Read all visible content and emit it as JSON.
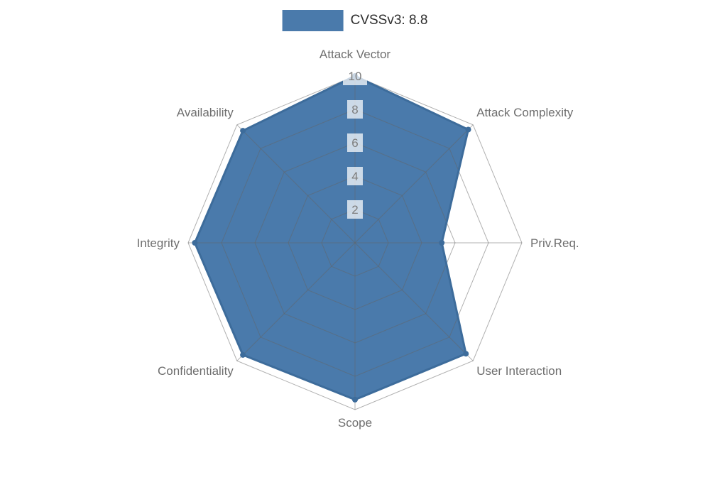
{
  "page": {
    "background": "#ffffff"
  },
  "legend": {
    "label": "CVSSv3: 8.8",
    "swatch_color": "#4a7aab"
  },
  "chart_data": {
    "type": "radar",
    "title": "CVSSv3: 8.8",
    "categories": [
      "Attack Vector",
      "Attack Complexity",
      "Priv.Req.",
      "User Interaction",
      "Scope",
      "Confidentiality",
      "Integrity",
      "Availability"
    ],
    "series": [
      {
        "name": "CVSSv3: 8.8",
        "values": [
          10,
          9.6,
          5.2,
          9.4,
          9.4,
          9.5,
          9.6,
          9.5
        ]
      }
    ],
    "rlim": [
      0,
      10
    ],
    "ticks": [
      2,
      4,
      6,
      8,
      10
    ],
    "grid": true,
    "legend_position": "top",
    "axis_direction": "clockwise-from-top",
    "fill_color": "#4a7aab",
    "border_color": "#3d6c9b",
    "point_color": "#3d6c9b",
    "grid_color": "#646464",
    "grid_opacity": 0.5,
    "tick_backdrop_color": "rgba(255,255,255,0.72)",
    "tick_text_color": "#7d7d7d",
    "label_color": "#6e6e6e",
    "legend_text_color": "#2e2e2e"
  }
}
